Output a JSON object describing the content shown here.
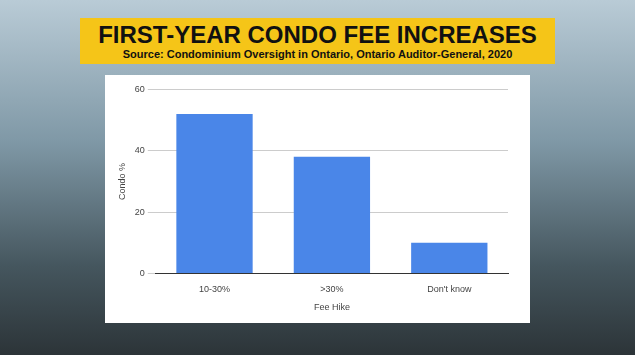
{
  "chart_data": {
    "type": "bar",
    "title": "FIRST-YEAR CONDO FEE INCREASES",
    "subtitle": "Source: Condominium Oversight in Ontario, Ontario Auditor-General, 2020",
    "xlabel": "Fee Hike",
    "ylabel": "Condo %",
    "categories": [
      "10-30%",
      ">30%",
      "Don't know"
    ],
    "values": [
      52,
      38,
      10
    ],
    "color": "#4a86e8",
    "ylim": [
      0,
      60
    ],
    "yticks": [
      0,
      20,
      40,
      60
    ],
    "grid": true
  }
}
